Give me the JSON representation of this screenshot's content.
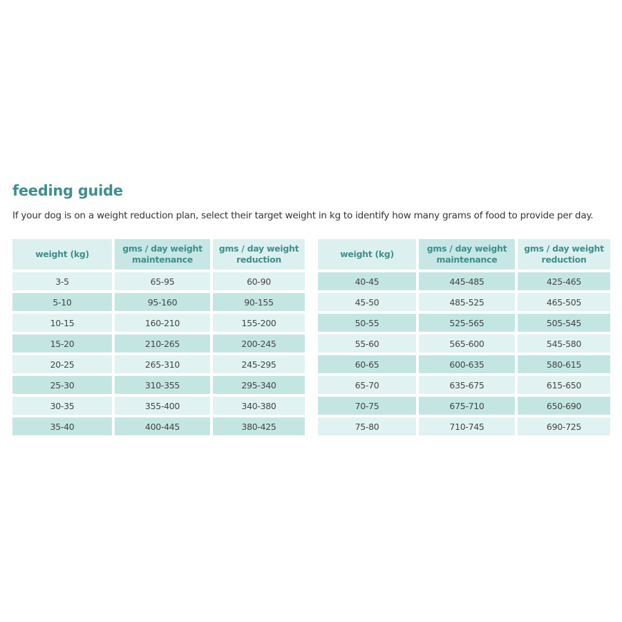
{
  "title": "feeding guide",
  "intro": "If your dog is on a weight reduction plan, select their target weight in kg to identify how many grams of food to provide per day.",
  "colors": {
    "accent": "#3f8f8b",
    "row_light": "#e1f2f2",
    "row_dark": "#c3e6e3",
    "header": "#ddf0f0"
  },
  "headers": [
    "weight (kg)",
    "gms / day weight maintenance",
    "gms / day weight reduction"
  ],
  "left_table": [
    [
      "3-5",
      "65-95",
      "60-90"
    ],
    [
      "5-10",
      "95-160",
      "90-155"
    ],
    [
      "10-15",
      "160-210",
      "155-200"
    ],
    [
      "15-20",
      "210-265",
      "200-245"
    ],
    [
      "20-25",
      "265-310",
      "245-295"
    ],
    [
      "25-30",
      "310-355",
      "295-340"
    ],
    [
      "30-35",
      "355-400",
      "340-380"
    ],
    [
      "35-40",
      "400-445",
      "380-425"
    ]
  ],
  "right_table": [
    [
      "40-45",
      "445-485",
      "425-465"
    ],
    [
      "45-50",
      "485-525",
      "465-505"
    ],
    [
      "50-55",
      "525-565",
      "505-545"
    ],
    [
      "55-60",
      "565-600",
      "545-580"
    ],
    [
      "60-65",
      "600-635",
      "580-615"
    ],
    [
      "65-70",
      "635-675",
      "615-650"
    ],
    [
      "70-75",
      "675-710",
      "650-690"
    ],
    [
      "75-80",
      "710-745",
      "690-725"
    ]
  ]
}
